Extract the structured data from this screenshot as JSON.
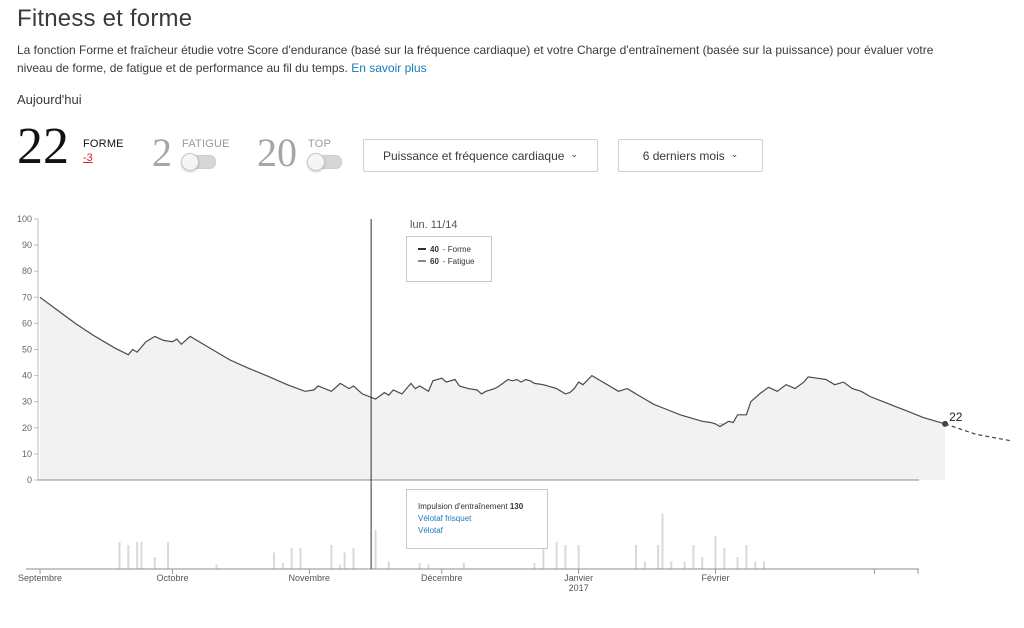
{
  "page": {
    "title": "Fitness et forme",
    "description": "La fonction Forme et fraîcheur étudie votre Score d'endurance (basé sur la fréquence cardiaque) et votre Charge d'entraînement (basée sur la puissance) pour évaluer votre niveau de forme, de fatigue et de performance au fil du temps.",
    "learn_more": "En savoir plus",
    "today_label": "Aujourd'hui"
  },
  "metrics": {
    "forme": {
      "value": "22",
      "label": "FORME",
      "delta": "-3"
    },
    "fatigue": {
      "value": "2",
      "label": "FATIGUE",
      "toggle_on": false
    },
    "top": {
      "value": "20",
      "label": "TOP",
      "toggle_on": false
    }
  },
  "controls": {
    "source_dropdown": "Puissance et fréquence cardiaque",
    "period_dropdown": "6 derniers mois"
  },
  "tooltip": {
    "date": "lun. 11/14",
    "forme_value": "40",
    "forme_label": "- Forme",
    "fatigue_value": "60",
    "fatigue_label": "- Fatigue",
    "impulse_label": "Impulsion d'entraînement",
    "impulse_value": "130",
    "activities": [
      "Vélotaf frisquet",
      "Vélotaf"
    ]
  },
  "colors": {
    "line": "#4a4a4a",
    "area": "#f2f2f2",
    "link": "#1a7bb9",
    "delta": "#d8242a",
    "bars": "#d9d9d9"
  },
  "chart_data": {
    "type": "area",
    "ylim": [
      0,
      100
    ],
    "yticks": [
      0,
      10,
      20,
      30,
      40,
      50,
      60,
      70,
      80,
      90,
      100
    ],
    "xticks": [
      {
        "label": "Septembre",
        "sub": "",
        "day": 0
      },
      {
        "label": "Octobre",
        "sub": "",
        "day": 30
      },
      {
        "label": "Novembre",
        "sub": "",
        "day": 61
      },
      {
        "label": "Décembre",
        "sub": "",
        "day": 91
      },
      {
        "label": "Janvier",
        "sub": "2017",
        "day": 122
      },
      {
        "label": "Février",
        "sub": "",
        "day": 153
      }
    ],
    "current_label": "22",
    "reference_value": 21.5,
    "selected_day": 75,
    "series": [
      {
        "name": "Forme",
        "points": [
          [
            0,
            70
          ],
          [
            4,
            65
          ],
          [
            8,
            60
          ],
          [
            12,
            55.5
          ],
          [
            17,
            50.5
          ],
          [
            20,
            48
          ],
          [
            21,
            50
          ],
          [
            22,
            49
          ],
          [
            24,
            53
          ],
          [
            26,
            55
          ],
          [
            28,
            53.5
          ],
          [
            30,
            53
          ],
          [
            31,
            54
          ],
          [
            32,
            52
          ],
          [
            34,
            55
          ],
          [
            38,
            51
          ],
          [
            43,
            46
          ],
          [
            47,
            43
          ],
          [
            52,
            39.5
          ],
          [
            56,
            36.5
          ],
          [
            60,
            34
          ],
          [
            62,
            34.5
          ],
          [
            63,
            36
          ],
          [
            66,
            34
          ],
          [
            68,
            37
          ],
          [
            70,
            35
          ],
          [
            71,
            36
          ],
          [
            73,
            33
          ],
          [
            76,
            31
          ],
          [
            78,
            33.5
          ],
          [
            79,
            32.5
          ],
          [
            80,
            34.5
          ],
          [
            82,
            33
          ],
          [
            84,
            37
          ],
          [
            85,
            35
          ],
          [
            86,
            36
          ],
          [
            88,
            34
          ],
          [
            89,
            38
          ],
          [
            91,
            39
          ],
          [
            92,
            37.5
          ],
          [
            94,
            38.5
          ],
          [
            95,
            36
          ],
          [
            97,
            35
          ],
          [
            99,
            34.5
          ],
          [
            100,
            33
          ],
          [
            101,
            34
          ],
          [
            103,
            35
          ],
          [
            104,
            36
          ],
          [
            106,
            38.5
          ],
          [
            107,
            38
          ],
          [
            108,
            38.5
          ],
          [
            109,
            37.5
          ],
          [
            110,
            38.5
          ],
          [
            111,
            38
          ],
          [
            112,
            37
          ],
          [
            114,
            36.5
          ],
          [
            117,
            35
          ],
          [
            119,
            33
          ],
          [
            120,
            33.5
          ],
          [
            121,
            35
          ],
          [
            122,
            37.5
          ],
          [
            123,
            36.5
          ],
          [
            125,
            40
          ],
          [
            128,
            37
          ],
          [
            131,
            34
          ],
          [
            133,
            35
          ],
          [
            136,
            32
          ],
          [
            139,
            29
          ],
          [
            142,
            27
          ],
          [
            145,
            25
          ],
          [
            148,
            23.5
          ],
          [
            150,
            22.5
          ],
          [
            152,
            22
          ],
          [
            153,
            21.5
          ],
          [
            154,
            20.5
          ],
          [
            156,
            22.5
          ],
          [
            157,
            22
          ],
          [
            158,
            25
          ],
          [
            160,
            25
          ],
          [
            161,
            30
          ],
          [
            163,
            33
          ],
          [
            165,
            35.5
          ],
          [
            167,
            34
          ],
          [
            169,
            36.5
          ],
          [
            171,
            35
          ],
          [
            173,
            37.5
          ],
          [
            174,
            39.5
          ],
          [
            176,
            39
          ],
          [
            178,
            38.5
          ],
          [
            180,
            36.5
          ],
          [
            182,
            37.5
          ],
          [
            184,
            35
          ],
          [
            186,
            34
          ],
          [
            188,
            32
          ],
          [
            191,
            30
          ],
          [
            194,
            28
          ],
          [
            197,
            26
          ],
          [
            200,
            24
          ],
          [
            203,
            22.5
          ],
          [
            205,
            21.5
          ]
        ]
      }
    ],
    "projection": [
      [
        205,
        21.5
      ],
      [
        212,
        17.5
      ],
      [
        220,
        15
      ]
    ],
    "impulse_bars": [
      [
        18,
        18
      ],
      [
        20,
        16
      ],
      [
        22,
        18
      ],
      [
        23,
        18
      ],
      [
        26,
        8
      ],
      [
        29,
        18
      ],
      [
        40,
        3
      ],
      [
        53,
        11
      ],
      [
        55,
        4
      ],
      [
        57,
        14
      ],
      [
        59,
        14
      ],
      [
        66,
        16
      ],
      [
        68,
        3
      ],
      [
        69,
        11
      ],
      [
        71,
        14
      ],
      [
        76,
        26
      ],
      [
        79,
        5
      ],
      [
        86,
        4
      ],
      [
        88,
        3
      ],
      [
        96,
        4
      ],
      [
        112,
        4
      ],
      [
        114,
        14
      ],
      [
        117,
        18
      ],
      [
        119,
        16
      ],
      [
        122,
        16
      ],
      [
        135,
        16
      ],
      [
        137,
        5
      ],
      [
        140,
        16
      ],
      [
        141,
        37
      ],
      [
        143,
        5
      ],
      [
        146,
        5
      ],
      [
        148,
        16
      ],
      [
        150,
        8
      ],
      [
        153,
        22
      ],
      [
        155,
        14
      ],
      [
        158,
        8
      ],
      [
        160,
        16
      ],
      [
        162,
        5
      ],
      [
        164,
        5
      ]
    ],
    "bars_scale_max": 40
  }
}
